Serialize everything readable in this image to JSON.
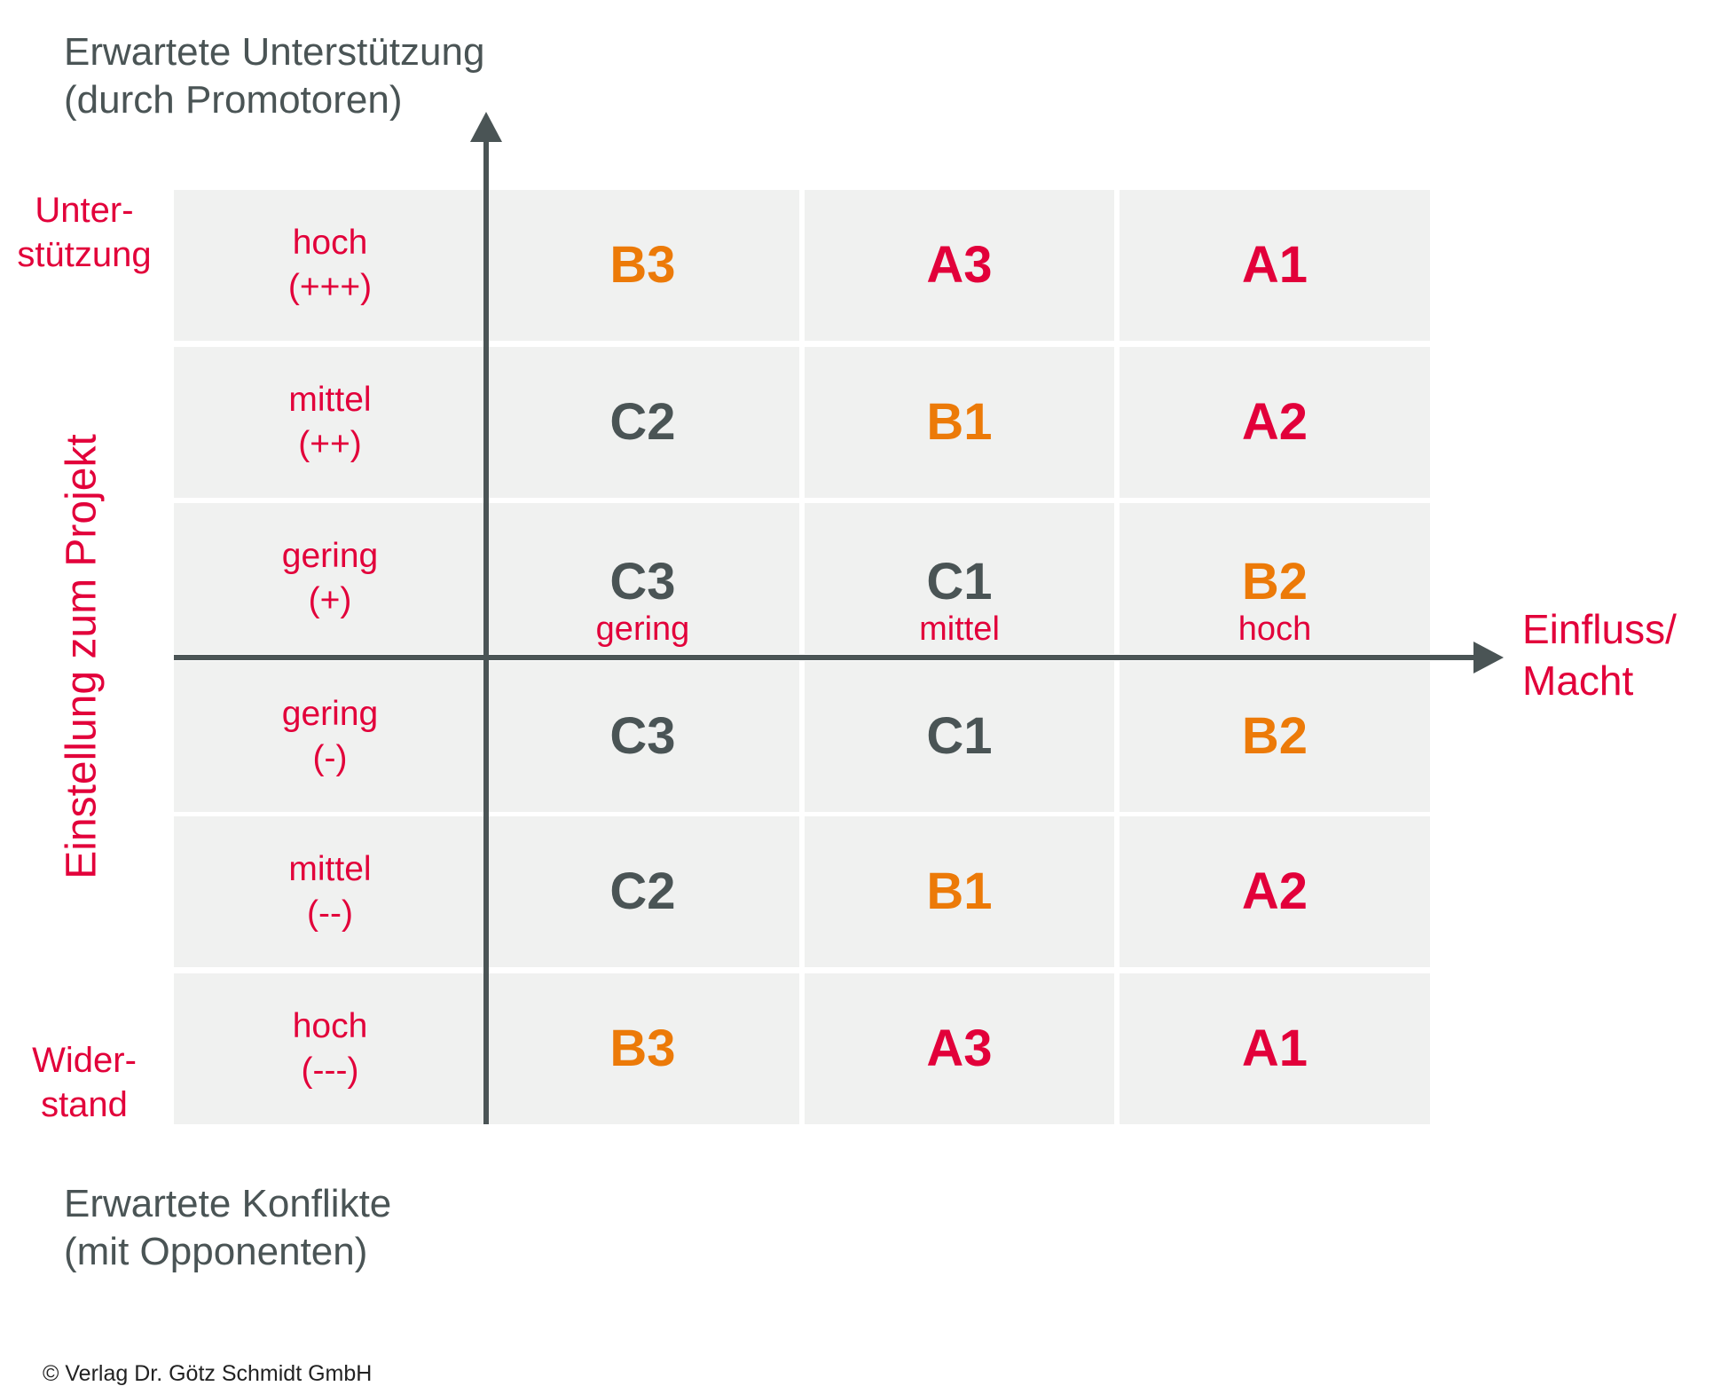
{
  "title_top": {
    "line1": "Erwartete Unterstützung",
    "line2": "(durch Promotoren)"
  },
  "title_bottom": {
    "line1": "Erwartete Konflikte",
    "line2": "(mit Opponenten)"
  },
  "y_axis_label": "Einstellung zum Projekt",
  "x_axis_label": {
    "line1": "Einfluss/",
    "line2": "Macht"
  },
  "side_top": {
    "line1": "Unter-",
    "line2": "stützung"
  },
  "side_bottom": {
    "line1": "Wider-",
    "line2": "stand"
  },
  "x_levels": [
    "gering",
    "mittel",
    "hoch"
  ],
  "colors": {
    "red": "#e2003a",
    "orange": "#ec7a08",
    "gray": "#4a5455",
    "cell": "#f0f1f0"
  },
  "rows": [
    {
      "level": "hoch",
      "sign": "(+++)",
      "cells": [
        {
          "code": "B3",
          "color": "orange"
        },
        {
          "code": "A3",
          "color": "red"
        },
        {
          "code": "A1",
          "color": "red"
        }
      ]
    },
    {
      "level": "mittel",
      "sign": "(++)",
      "cells": [
        {
          "code": "C2",
          "color": "gray"
        },
        {
          "code": "B1",
          "color": "orange"
        },
        {
          "code": "A2",
          "color": "red"
        }
      ]
    },
    {
      "level": "gering",
      "sign": "(+)",
      "cells": [
        {
          "code": "C3",
          "color": "gray"
        },
        {
          "code": "C1",
          "color": "gray"
        },
        {
          "code": "B2",
          "color": "orange"
        }
      ]
    },
    {
      "level": "gering",
      "sign": "(-)",
      "cells": [
        {
          "code": "C3",
          "color": "gray"
        },
        {
          "code": "C1",
          "color": "gray"
        },
        {
          "code": "B2",
          "color": "orange"
        }
      ]
    },
    {
      "level": "mittel",
      "sign": "(--)",
      "cells": [
        {
          "code": "C2",
          "color": "gray"
        },
        {
          "code": "B1",
          "color": "orange"
        },
        {
          "code": "A2",
          "color": "red"
        }
      ]
    },
    {
      "level": "hoch",
      "sign": "(---)",
      "cells": [
        {
          "code": "B3",
          "color": "orange"
        },
        {
          "code": "A3",
          "color": "red"
        },
        {
          "code": "A1",
          "color": "red"
        }
      ]
    }
  ],
  "copyright": "© Verlag Dr. Götz Schmidt GmbH"
}
